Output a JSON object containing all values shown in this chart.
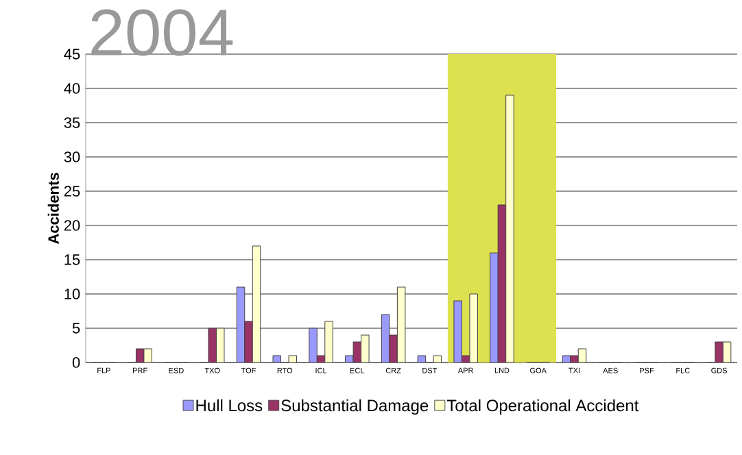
{
  "chart_data": {
    "type": "bar",
    "title": "2004",
    "ylabel": "Accidents",
    "categories": [
      "FLP",
      "PRF",
      "ESD",
      "TXO",
      "TOF",
      "RTO",
      "ICL",
      "ECL",
      "CRZ",
      "DST",
      "APR",
      "LND",
      "GOA",
      "TXI",
      "AES",
      "PSF",
      "FLC",
      "GDS"
    ],
    "series": [
      {
        "name": "Hull Loss",
        "color": "#9999ff",
        "values": [
          0,
          0,
          0,
          0,
          11,
          1,
          5,
          1,
          7,
          1,
          9,
          16,
          0,
          1,
          0,
          0,
          0,
          0
        ]
      },
      {
        "name": "Substantial Damage",
        "color": "#993366",
        "values": [
          0,
          2,
          0,
          5,
          6,
          0,
          1,
          3,
          4,
          0,
          1,
          23,
          0,
          1,
          0,
          0,
          0,
          3
        ]
      },
      {
        "name": "Total Operational Accident",
        "color": "#ffffcc",
        "values": [
          0,
          2,
          0,
          5,
          17,
          1,
          6,
          4,
          11,
          1,
          10,
          39,
          0,
          2,
          0,
          0,
          0,
          3
        ]
      }
    ],
    "ylim": [
      0,
      45
    ],
    "yticks": [
      0,
      5,
      10,
      15,
      20,
      25,
      30,
      35,
      40,
      45
    ],
    "bands": [
      {
        "axis": "x",
        "from": "APR",
        "to": "GOA",
        "color": "#dde04f"
      }
    ],
    "grid": "y",
    "legend": "bottom"
  }
}
